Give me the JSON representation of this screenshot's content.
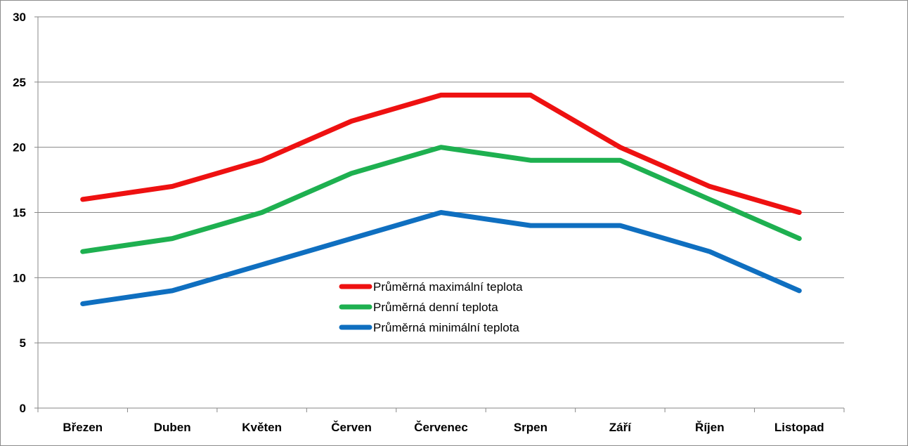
{
  "chart_data": {
    "type": "line",
    "categories": [
      "Březen",
      "Duben",
      "Květen",
      "Červen",
      "Červenec",
      "Srpen",
      "Září",
      "Říjen",
      "Listopad"
    ],
    "series": [
      {
        "name": "Průměrná maximální teplota",
        "color": "#ee1111",
        "values": [
          16,
          17,
          19,
          22,
          24,
          24,
          20,
          17,
          15
        ]
      },
      {
        "name": "Průměrná denní teplota",
        "color": "#1eb050",
        "values": [
          12,
          13,
          15,
          18,
          20,
          19,
          19,
          16,
          13
        ]
      },
      {
        "name": "Průměrná minimální teplota",
        "color": "#0f6fc0",
        "values": [
          8,
          9,
          11,
          13,
          15,
          14,
          14,
          12,
          9
        ]
      }
    ],
    "y_ticks": [
      "0",
      "5",
      "10",
      "15",
      "20",
      "25",
      "30"
    ],
    "ylim": [
      0,
      30
    ],
    "grid": true,
    "legend_position": "center"
  }
}
